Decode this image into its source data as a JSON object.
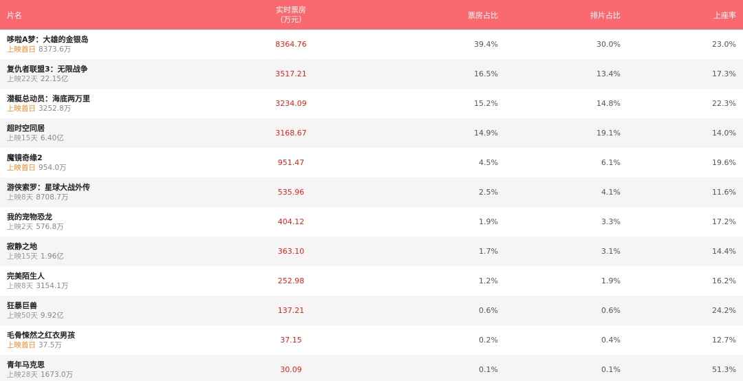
{
  "header": {
    "name": "片名",
    "boxoffice_line1": "实时票房",
    "boxoffice_line2": "（万元）",
    "share": "票房占比",
    "schedule": "排片占比",
    "seat": "上座率"
  },
  "rows": [
    {
      "title": "哆啦A梦：大雄的金银岛",
      "days": "上映首日",
      "first": true,
      "total": "8373.6万",
      "boxoffice": "8364.76",
      "share": "39.4%",
      "schedule": "30.0%",
      "seat": "23.0%"
    },
    {
      "title": "复仇者联盟3：无限战争",
      "days": "上映22天",
      "first": false,
      "total": "22.15亿",
      "boxoffice": "3517.21",
      "share": "16.5%",
      "schedule": "13.4%",
      "seat": "17.3%"
    },
    {
      "title": "潜艇总动员：海底两万里",
      "days": "上映首日",
      "first": true,
      "total": "3252.8万",
      "boxoffice": "3234.09",
      "share": "15.2%",
      "schedule": "14.8%",
      "seat": "22.3%"
    },
    {
      "title": "超时空同居",
      "days": "上映15天",
      "first": false,
      "total": "6.40亿",
      "boxoffice": "3168.67",
      "share": "14.9%",
      "schedule": "19.1%",
      "seat": "14.0%"
    },
    {
      "title": "魔镜奇缘2",
      "days": "上映首日",
      "first": true,
      "total": "954.0万",
      "boxoffice": "951.47",
      "share": "4.5%",
      "schedule": "6.1%",
      "seat": "19.6%"
    },
    {
      "title": "游侠索罗：星球大战外传",
      "days": "上映8天",
      "first": false,
      "total": "8708.7万",
      "boxoffice": "535.96",
      "share": "2.5%",
      "schedule": "4.1%",
      "seat": "11.6%"
    },
    {
      "title": "我的宠物恐龙",
      "days": "上映2天",
      "first": false,
      "total": "576.8万",
      "boxoffice": "404.12",
      "share": "1.9%",
      "schedule": "3.3%",
      "seat": "17.2%"
    },
    {
      "title": "寂静之地",
      "days": "上映15天",
      "first": false,
      "total": "1.96亿",
      "boxoffice": "363.10",
      "share": "1.7%",
      "schedule": "3.1%",
      "seat": "14.4%"
    },
    {
      "title": "完美陌生人",
      "days": "上映8天",
      "first": false,
      "total": "3154.1万",
      "boxoffice": "252.98",
      "share": "1.2%",
      "schedule": "1.9%",
      "seat": "16.2%"
    },
    {
      "title": "狂暴巨兽",
      "days": "上映50天",
      "first": false,
      "total": "9.92亿",
      "boxoffice": "137.21",
      "share": "0.6%",
      "schedule": "0.6%",
      "seat": "24.2%"
    },
    {
      "title": "毛骨悚然之红衣男孩",
      "days": "上映首日",
      "first": true,
      "total": "37.5万",
      "boxoffice": "37.15",
      "share": "0.2%",
      "schedule": "0.4%",
      "seat": "12.7%"
    },
    {
      "title": "青年马克思",
      "days": "上映28天",
      "first": false,
      "total": "1673.0万",
      "boxoffice": "30.09",
      "share": "0.1%",
      "schedule": "0.1%",
      "seat": "51.3%"
    }
  ]
}
